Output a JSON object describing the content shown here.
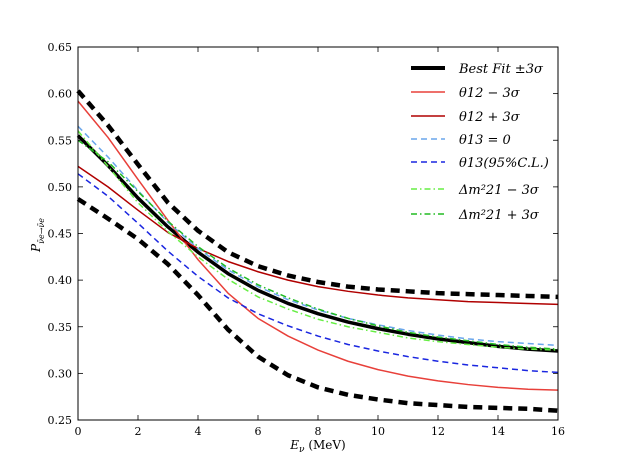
{
  "chart_data": {
    "type": "line",
    "title": "",
    "xlabel": "E_ν (MeV)",
    "ylabel": "P_(ν̄e→ν̄e)",
    "xlim": [
      0,
      16
    ],
    "ylim": [
      0.25,
      0.65
    ],
    "xticks": [
      0,
      2,
      4,
      6,
      8,
      10,
      12,
      14,
      16
    ],
    "yticks": [
      0.25,
      0.3,
      0.35,
      0.4,
      0.45,
      0.5,
      0.55,
      0.6,
      0.65
    ],
    "ytick_labels": [
      "0.25",
      "0.30",
      "0.35",
      "0.40",
      "0.45",
      "0.50",
      "0.55",
      "0.60",
      "0.65"
    ],
    "grid": false,
    "legend_position": "top-right",
    "legend_labels": {
      "best_fit": "Best Fit ±3σ",
      "theta12_minus": "θ12 − 3σ",
      "theta12_plus": "θ12 + 3σ",
      "theta13_zero": "θ13 = 0",
      "theta13_cl": "θ13(95%C.L.)",
      "dm21_minus": "Δm²21 − 3σ",
      "dm21_plus": "Δm²21 + 3σ"
    },
    "x": [
      0,
      1,
      2,
      3,
      4,
      5,
      6,
      7,
      8,
      9,
      10,
      11,
      12,
      13,
      14,
      15,
      16
    ],
    "series": [
      {
        "name": "Best Fit",
        "color": "#000000",
        "style": "solid",
        "width": 3.5,
        "values": [
          0.555,
          0.523,
          0.488,
          0.457,
          0.43,
          0.407,
          0.389,
          0.375,
          0.364,
          0.355,
          0.348,
          0.342,
          0.337,
          0.333,
          0.329,
          0.326,
          0.324
        ]
      },
      {
        "name": "Best Fit +3σ",
        "color": "#000000",
        "style": "dashed",
        "width": 4.5,
        "values": [
          0.603,
          0.566,
          0.524,
          0.483,
          0.453,
          0.43,
          0.415,
          0.405,
          0.398,
          0.393,
          0.39,
          0.388,
          0.386,
          0.385,
          0.384,
          0.383,
          0.382
        ]
      },
      {
        "name": "Best Fit -3σ",
        "color": "#000000",
        "style": "dashed",
        "width": 4.5,
        "values": [
          0.487,
          0.466,
          0.444,
          0.417,
          0.384,
          0.347,
          0.318,
          0.298,
          0.285,
          0.277,
          0.272,
          0.268,
          0.266,
          0.264,
          0.263,
          0.262,
          0.26
        ]
      },
      {
        "name": "θ12 − 3σ",
        "color": "#e8403a",
        "style": "solid",
        "width": 1.5,
        "values": [
          0.592,
          0.553,
          0.508,
          0.464,
          0.422,
          0.386,
          0.359,
          0.34,
          0.325,
          0.313,
          0.304,
          0.297,
          0.292,
          0.288,
          0.285,
          0.283,
          0.282
        ]
      },
      {
        "name": "θ12 + 3σ",
        "color": "#b00000",
        "style": "solid",
        "width": 1.5,
        "values": [
          0.522,
          0.5,
          0.475,
          0.451,
          0.434,
          0.42,
          0.409,
          0.4,
          0.393,
          0.388,
          0.384,
          0.381,
          0.379,
          0.377,
          0.376,
          0.375,
          0.374
        ]
      },
      {
        "name": "θ13 = 0",
        "color": "#6aa6ec",
        "style": "dashed",
        "width": 1.5,
        "values": [
          0.565,
          0.532,
          0.496,
          0.462,
          0.434,
          0.411,
          0.393,
          0.379,
          0.368,
          0.359,
          0.352,
          0.346,
          0.341,
          0.337,
          0.334,
          0.332,
          0.33
        ]
      },
      {
        "name": "θ13(95%C.L.)",
        "color": "#1a26e0",
        "style": "dashed",
        "width": 1.5,
        "values": [
          0.514,
          0.49,
          0.461,
          0.431,
          0.404,
          0.381,
          0.364,
          0.351,
          0.34,
          0.331,
          0.324,
          0.318,
          0.313,
          0.309,
          0.306,
          0.303,
          0.301
        ]
      },
      {
        "name": "Δm²21 − 3σ",
        "color": "#66ee44",
        "style": "dashdot",
        "width": 1.5,
        "values": [
          0.56,
          0.522,
          0.483,
          0.452,
          0.425,
          0.401,
          0.382,
          0.369,
          0.358,
          0.35,
          0.344,
          0.338,
          0.334,
          0.331,
          0.328,
          0.326,
          0.325
        ]
      },
      {
        "name": "Δm²21 + 3σ",
        "color": "#22bb22",
        "style": "dashdot",
        "width": 1.5,
        "values": [
          0.55,
          0.527,
          0.495,
          0.463,
          0.436,
          0.413,
          0.395,
          0.381,
          0.369,
          0.359,
          0.351,
          0.344,
          0.339,
          0.335,
          0.331,
          0.328,
          0.326
        ]
      }
    ]
  }
}
